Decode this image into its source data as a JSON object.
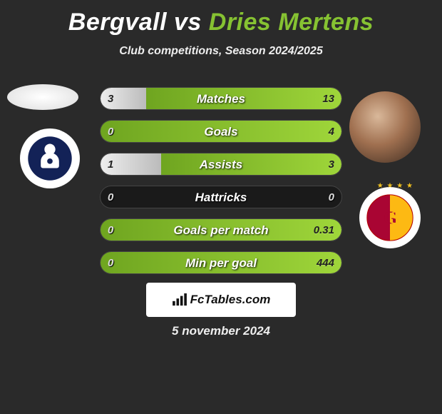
{
  "title": {
    "player1": "Bergvall",
    "vs": "vs",
    "player2": "Dries Mertens",
    "player2_color": "#86c232"
  },
  "subtitle": "Club competitions, Season 2024/2025",
  "bars": [
    {
      "label": "Matches",
      "left": "3",
      "right": "13",
      "lfill": 19,
      "rfill": 81
    },
    {
      "label": "Goals",
      "left": "0",
      "right": "4",
      "lfill": 0,
      "rfill": 100
    },
    {
      "label": "Assists",
      "left": "1",
      "right": "3",
      "lfill": 25,
      "rfill": 75
    },
    {
      "label": "Hattricks",
      "left": "0",
      "right": "0",
      "lfill": 0,
      "rfill": 0
    },
    {
      "label": "Goals per match",
      "left": "0",
      "right": "0.31",
      "lfill": 0,
      "rfill": 100
    },
    {
      "label": "Min per goal",
      "left": "0",
      "right": "444",
      "lfill": 0,
      "rfill": 100
    }
  ],
  "colors": {
    "background": "#2a2a2a",
    "bar_bg": "#1a1a1a",
    "left_fill_start": "#eeeeee",
    "left_fill_end": "#bbbbbb",
    "right_fill_start": "#9fd63a",
    "right_fill_end": "#6fa520"
  },
  "attribution": "FcTables.com",
  "date": "5 november 2024",
  "crest_left_name": "tottenham-crest",
  "crest_right_name": "galatasaray-crest"
}
